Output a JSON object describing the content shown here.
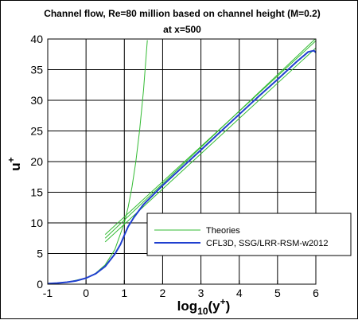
{
  "chart_data": {
    "type": "line",
    "title": "Channel flow, Re=80 million based on channel height (M=0.2)",
    "subtitle": "at x=500",
    "xlabel": {
      "main": "log",
      "sub": "10",
      "paren": "(y",
      "sup": "+",
      "close": ")"
    },
    "ylabel": {
      "main": "u",
      "sup": "+"
    },
    "xlim": [
      -1,
      6
    ],
    "ylim": [
      0,
      40
    ],
    "x_ticks": [
      -1,
      0,
      1,
      2,
      3,
      4,
      5,
      6
    ],
    "y_ticks": [
      0,
      5,
      10,
      15,
      20,
      25,
      30,
      35,
      40
    ],
    "grid": true,
    "legend_position": "bottom-right",
    "series": [
      {
        "name": "Theories",
        "color": "#33bb33",
        "curves": [
          {
            "x": [
              -1.0,
              -0.5,
              0.0,
              0.25,
              0.5,
              0.75,
              1.0,
              1.1,
              1.2,
              1.3,
              1.4,
              1.5,
              1.6
            ],
            "y": [
              0.1,
              0.316,
              1.0,
              1.778,
              3.162,
              5.623,
              10.0,
              12.59,
              15.85,
              19.95,
              25.12,
              31.62,
              39.81
            ]
          },
          {
            "x": [
              0.5,
              6.0
            ],
            "y": [
              6.9,
              38.55
            ]
          },
          {
            "x": [
              0.5,
              6.0
            ],
            "y": [
              8.1,
              39.7
            ]
          },
          {
            "x": [
              0.5,
              6.0
            ],
            "y": [
              7.5,
              40.1
            ]
          }
        ]
      },
      {
        "name": "CFL3D, SSG/LRR-RSM-w2012",
        "color": "#1f3fcf",
        "curves": [
          {
            "x": [
              -1.0,
              -0.75,
              -0.5,
              -0.25,
              0.0,
              0.25,
              0.5,
              0.75,
              0.9,
              1.0,
              1.1,
              1.25,
              1.5,
              2.0,
              2.5,
              3.0,
              3.5,
              4.0,
              4.5,
              5.0,
              5.5,
              5.8,
              5.95,
              6.0
            ],
            "y": [
              0.1,
              0.18,
              0.32,
              0.56,
              0.99,
              1.7,
              2.9,
              4.9,
              6.5,
              8.0,
              9.4,
              10.9,
              13.0,
              16.1,
              19.0,
              21.9,
              24.8,
              27.7,
              30.6,
              33.4,
              36.3,
              37.9,
              38.1,
              37.8
            ]
          }
        ]
      }
    ]
  }
}
